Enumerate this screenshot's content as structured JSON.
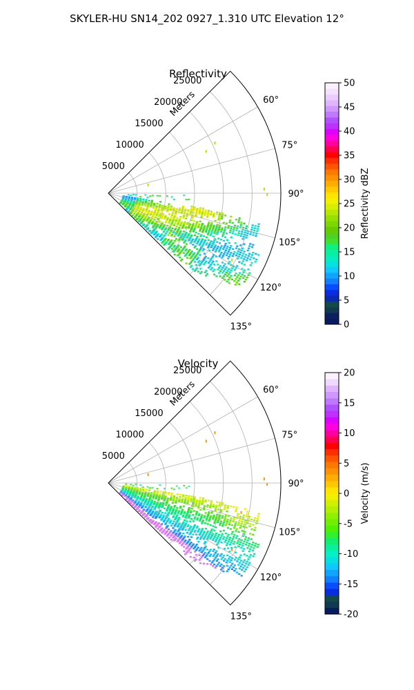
{
  "figure": {
    "suptitle": "SKYLER-HU  SN14_202  0927_1.310 UTC Elevation 12°"
  },
  "chart_data": [
    {
      "type": "polar-sector",
      "title": "Reflectivity",
      "radial_label": "Meters",
      "rlim": [
        0,
        30000
      ],
      "r_ticks": [
        5000,
        10000,
        15000,
        20000,
        25000
      ],
      "theta_range_deg": [
        45,
        135
      ],
      "theta_ticks": [
        "60°",
        "75°",
        "90°",
        "105°",
        "120°",
        "135°"
      ],
      "grid": true,
      "colorbar": {
        "label": "Reflectivity dBZ",
        "vmin": 0,
        "vmax": 50,
        "ticks": [
          "0",
          "5",
          "10",
          "15",
          "20",
          "25",
          "30",
          "35",
          "40",
          "45",
          "50"
        ],
        "colors": [
          "#0a1a5e",
          "#0c2060",
          "#0f3a52",
          "#114a46",
          "#0a2aa8",
          "#0a2ce0",
          "#0a4cff",
          "#1080ff",
          "#10a4ff",
          "#10c8ff",
          "#06e0e0",
          "#06eec0",
          "#08f0a0",
          "#10f080",
          "#40e030",
          "#50d020",
          "#66cc00",
          "#7cd800",
          "#98e000",
          "#b8e800",
          "#d8ee00",
          "#f0f000",
          "#ffe400",
          "#ffc800",
          "#ffae00",
          "#ff9200",
          "#ff7800",
          "#ff5400",
          "#ff3000",
          "#ff0000",
          "#ff0050",
          "#ff00a0",
          "#ff00e0",
          "#e000ff",
          "#c030ff",
          "#b050ff",
          "#c078ff",
          "#d098ff",
          "#e0b4ff",
          "#ecccff",
          "#f4e0ff",
          "#fbf0ff"
        ]
      }
    },
    {
      "type": "polar-sector",
      "title": "Velocity",
      "radial_label": "Meters",
      "rlim": [
        0,
        30000
      ],
      "r_ticks": [
        5000,
        10000,
        15000,
        20000,
        25000
      ],
      "theta_range_deg": [
        45,
        135
      ],
      "theta_ticks": [
        "60°",
        "75°",
        "90°",
        "105°",
        "120°",
        "135°"
      ],
      "grid": true,
      "colorbar": {
        "label": "Velocity (m/s)",
        "vmin": -20,
        "vmax": 20,
        "ticks": [
          "-20",
          "-15",
          "-10",
          "-5",
          "0",
          "5",
          "10",
          "15",
          "20"
        ],
        "colors": [
          "#0a1a5e",
          "#0f3a52",
          "#114a46",
          "#0a2ce0",
          "#0a4cff",
          "#1080ff",
          "#10a4ff",
          "#10c8ff",
          "#06e0e0",
          "#06f0c8",
          "#08f0a0",
          "#10f070",
          "#30f030",
          "#50f000",
          "#70f000",
          "#90f000",
          "#b0f000",
          "#d0f000",
          "#f0f000",
          "#ffe400",
          "#ffc800",
          "#ffae00",
          "#ff9200",
          "#ff7800",
          "#ff5400",
          "#ff3000",
          "#ff0000",
          "#ff0050",
          "#ff00a0",
          "#ff00e0",
          "#e000ff",
          "#c030ff",
          "#b050ff",
          "#c078ff",
          "#d098ff",
          "#e0b4ff",
          "#f0d8ff",
          "#fbf0ff"
        ]
      }
    }
  ]
}
